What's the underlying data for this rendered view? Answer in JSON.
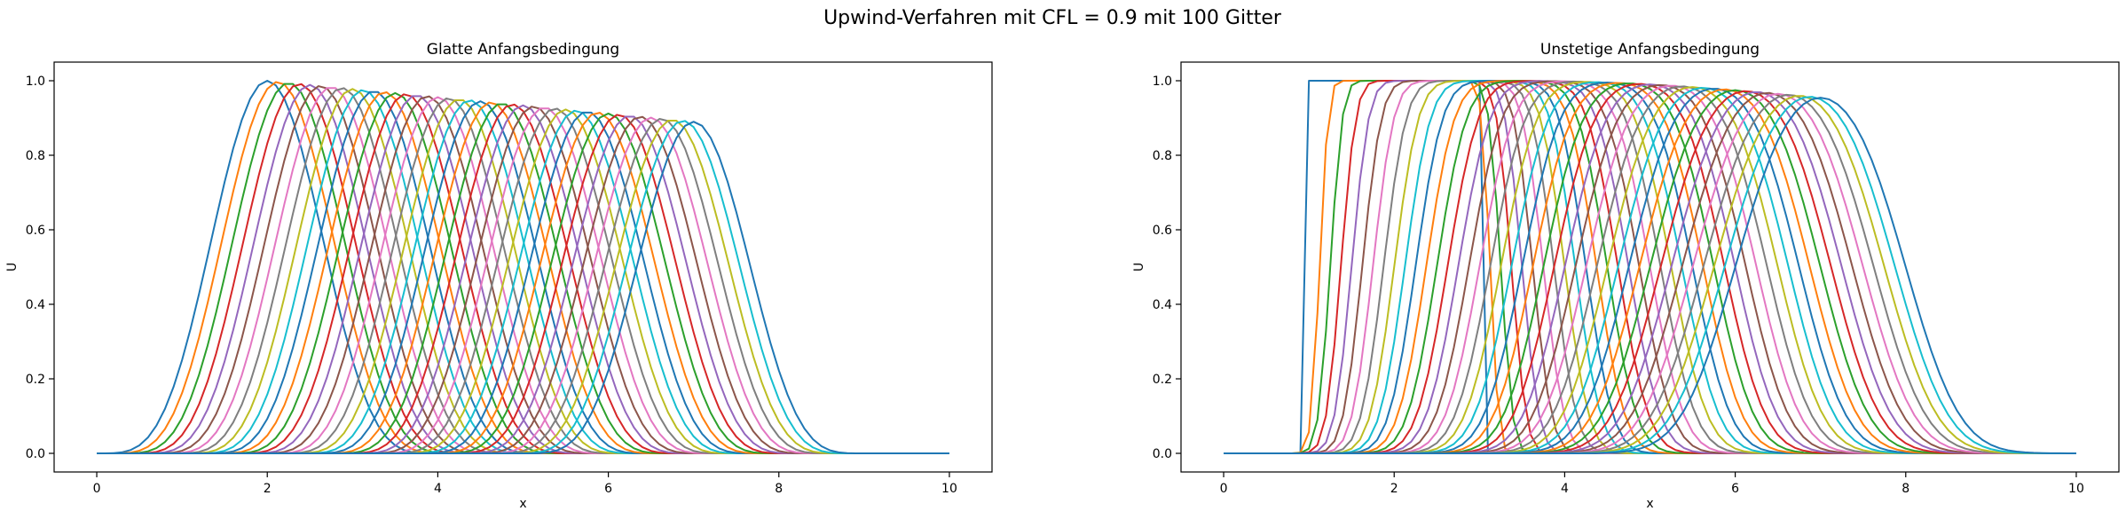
{
  "figure": {
    "suptitle": "Upwind-Verfahren mit CFL = 0.9 mit 100 Gitter"
  },
  "chart_data": [
    {
      "type": "line",
      "title": "Glatte Anfangsbedingung",
      "xlabel": "x",
      "ylabel": "U",
      "xlim": [
        -0.5,
        10.5
      ],
      "ylim": [
        -0.05,
        1.05
      ],
      "xticks": [
        "0",
        "2",
        "4",
        "6",
        "8",
        "10"
      ],
      "yticks": [
        "0.0",
        "0.2",
        "0.4",
        "0.6",
        "0.8",
        "1.0"
      ],
      "grid": false,
      "legend": "none",
      "series_count": 41,
      "series_colors": [
        "#1f77b4",
        "#ff7f0e",
        "#2ca02c",
        "#d62728",
        "#9467bd",
        "#8c564b",
        "#e377c2",
        "#7f7f7f",
        "#bcbd22",
        "#17becf"
      ],
      "initial_condition": "smooth bump on [0, 4] peaking at x = 2 with height 1",
      "shift_per_series": 0.125,
      "final_peak": {
        "x": 7.0,
        "y": 0.89
      }
    },
    {
      "type": "line",
      "title": "Unstetige Anfangsbedingung",
      "xlabel": "x",
      "ylabel": "U",
      "xlim": [
        -0.5,
        10.5
      ],
      "ylim": [
        -0.05,
        1.05
      ],
      "xticks": [
        "0",
        "2",
        "4",
        "6",
        "8",
        "10"
      ],
      "yticks": [
        "0.0",
        "0.2",
        "0.4",
        "0.6",
        "0.8",
        "1.0"
      ],
      "grid": false,
      "legend": "none",
      "series_count": 41,
      "series_colors": [
        "#1f77b4",
        "#ff7f0e",
        "#2ca02c",
        "#d62728",
        "#9467bd",
        "#8c564b",
        "#e377c2",
        "#7f7f7f",
        "#bcbd22",
        "#17becf"
      ],
      "initial_condition": "step of height 1 on [1, 3]",
      "shift_per_series": 0.125,
      "final_plateau": [
        6.0,
        8.0
      ]
    }
  ]
}
